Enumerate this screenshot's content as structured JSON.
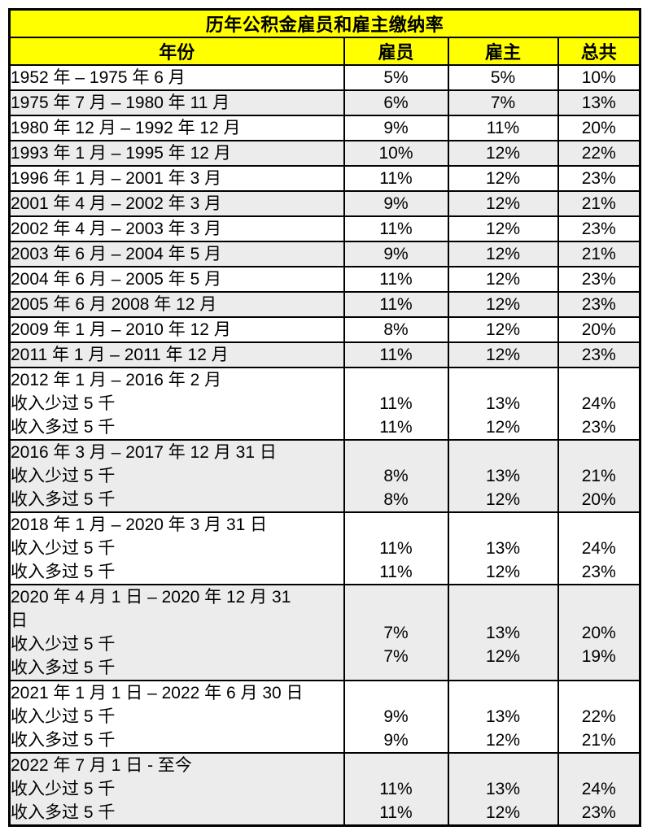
{
  "chart_data": {
    "type": "table",
    "title": "历年公积金雇员和雇主缴纳率",
    "columns": [
      "年份",
      "雇员",
      "雇主",
      "总共"
    ],
    "rows": [
      {
        "period": [
          "1952 年 – 1975 年 6 月"
        ],
        "employee": [
          "5%"
        ],
        "employer": [
          "5%"
        ],
        "total": [
          "10%"
        ]
      },
      {
        "period": [
          "1975 年 7 月 – 1980 年 11 月"
        ],
        "employee": [
          "6%"
        ],
        "employer": [
          "7%"
        ],
        "total": [
          "13%"
        ]
      },
      {
        "period": [
          "1980 年 12 月 – 1992 年 12 月"
        ],
        "employee": [
          "9%"
        ],
        "employer": [
          "11%"
        ],
        "total": [
          "20%"
        ]
      },
      {
        "period": [
          "1993 年 1 月 – 1995 年 12 月"
        ],
        "employee": [
          "10%"
        ],
        "employer": [
          "12%"
        ],
        "total": [
          "22%"
        ]
      },
      {
        "period": [
          "1996 年 1 月 – 2001 年 3 月"
        ],
        "employee": [
          "11%"
        ],
        "employer": [
          "12%"
        ],
        "total": [
          "23%"
        ]
      },
      {
        "period": [
          "2001 年 4 月 – 2002 年 3 月"
        ],
        "employee": [
          "9%"
        ],
        "employer": [
          "12%"
        ],
        "total": [
          "21%"
        ]
      },
      {
        "period": [
          "2002 年 4 月 – 2003 年 3 月"
        ],
        "employee": [
          "11%"
        ],
        "employer": [
          "12%"
        ],
        "total": [
          "23%"
        ]
      },
      {
        "period": [
          "2003 年 6 月 – 2004 年 5 月"
        ],
        "employee": [
          "9%"
        ],
        "employer": [
          "12%"
        ],
        "total": [
          "21%"
        ]
      },
      {
        "period": [
          "2004 年 6 月 – 2005 年 5 月"
        ],
        "employee": [
          "11%"
        ],
        "employer": [
          "12%"
        ],
        "total": [
          "23%"
        ]
      },
      {
        "period": [
          "2005 年 6 月 2008 年 12 月"
        ],
        "employee": [
          "11%"
        ],
        "employer": [
          "12%"
        ],
        "total": [
          "23%"
        ]
      },
      {
        "period": [
          "2009 年 1 月 – 2010 年 12 月"
        ],
        "employee": [
          "8%"
        ],
        "employer": [
          "12%"
        ],
        "total": [
          "20%"
        ]
      },
      {
        "period": [
          "2011 年 1 月 – 2011 年 12 月"
        ],
        "employee": [
          "11%"
        ],
        "employer": [
          "12%"
        ],
        "total": [
          "23%"
        ]
      },
      {
        "period": [
          "2012 年 1 月 – 2016 年 2 月",
          "收入少过 5 千",
          "收入多过 5 千"
        ],
        "employee": [
          "",
          "11%",
          "11%"
        ],
        "employer": [
          "",
          "13%",
          "12%"
        ],
        "total": [
          "",
          "24%",
          "23%"
        ]
      },
      {
        "period": [
          "2016 年 3 月 – 2017 年 12 月 31 日",
          "收入少过 5 千",
          "收入多过 5 千"
        ],
        "employee": [
          "",
          "8%",
          "8%"
        ],
        "employer": [
          "",
          "13%",
          "12%"
        ],
        "total": [
          "",
          "21%",
          "20%"
        ]
      },
      {
        "period": [
          "2018 年 1 月 – 2020 年 3 月 31 日",
          "收入少过 5 千",
          "收入多过 5 千"
        ],
        "employee": [
          "",
          "11%",
          "11%"
        ],
        "employer": [
          "",
          "13%",
          "12%"
        ],
        "total": [
          "",
          "24%",
          "23%"
        ]
      },
      {
        "period": [
          "2020 年 4 月 1 日 – 2020 年 12 月 31",
          "日",
          "收入少过 5 千",
          "收入多过 5 千"
        ],
        "employee": [
          "",
          "7%",
          "7%"
        ],
        "employer": [
          "",
          "13%",
          "12%"
        ],
        "total": [
          "",
          "20%",
          "19%"
        ]
      },
      {
        "period": [
          "2021 年 1 月 1 日 – 2022 年 6 月 30 日",
          "收入少过 5 千",
          "收入多过 5 千"
        ],
        "employee": [
          "",
          "9%",
          "9%"
        ],
        "employer": [
          "",
          "13%",
          "12%"
        ],
        "total": [
          "",
          "22%",
          "21%"
        ]
      },
      {
        "period": [
          "2022 年 7 月 1 日 - 至今",
          "收入少过 5 千",
          "收入多过 5 千"
        ],
        "employee": [
          "",
          "11%",
          "11%"
        ],
        "employer": [
          "",
          "13%",
          "12%"
        ],
        "total": [
          "",
          "24%",
          "23%"
        ]
      }
    ]
  },
  "colors": {
    "header_bg": "#FFFF00",
    "alt_row_bg": "#ECECEC",
    "border": "#000000",
    "text": "#000000"
  }
}
